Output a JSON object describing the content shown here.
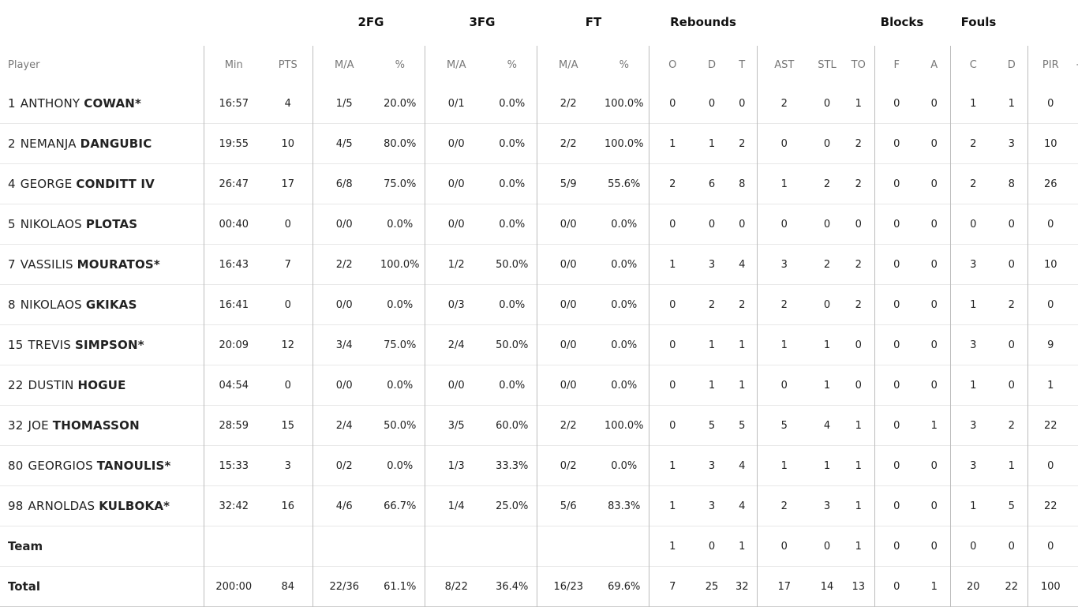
{
  "groups": {
    "fg2": "2FG",
    "fg3": "3FG",
    "ft": "FT",
    "reb": "Rebounds",
    "blk": "Blocks",
    "fouls": "Fouls"
  },
  "columns": [
    "Player",
    "Min",
    "PTS",
    "M/A",
    "%",
    "M/A",
    "%",
    "M/A",
    "%",
    "O",
    "D",
    "T",
    "AST",
    "STL",
    "TO",
    "F",
    "A",
    "C",
    "D",
    "PIR",
    "+/-"
  ],
  "players": [
    {
      "num": "1",
      "first": "ANTHONY",
      "last": "COWAN*",
      "stats": [
        "16:57",
        "4",
        "1/5",
        "20.0%",
        "0/1",
        "0.0%",
        "2/2",
        "100.0%",
        "0",
        "0",
        "0",
        "2",
        "0",
        "1",
        "0",
        "0",
        "1",
        "1",
        "0",
        ""
      ]
    },
    {
      "num": "2",
      "first": "NEMANJA",
      "last": "DANGUBIC",
      "stats": [
        "19:55",
        "10",
        "4/5",
        "80.0%",
        "0/0",
        "0.0%",
        "2/2",
        "100.0%",
        "1",
        "1",
        "2",
        "0",
        "0",
        "2",
        "0",
        "0",
        "2",
        "3",
        "10",
        ""
      ]
    },
    {
      "num": "4",
      "first": "GEORGE",
      "last": "CONDITT IV",
      "stats": [
        "26:47",
        "17",
        "6/8",
        "75.0%",
        "0/0",
        "0.0%",
        "5/9",
        "55.6%",
        "2",
        "6",
        "8",
        "1",
        "2",
        "2",
        "0",
        "0",
        "2",
        "8",
        "26",
        ""
      ]
    },
    {
      "num": "5",
      "first": "NIKOLAOS",
      "last": "PLOTAS",
      "stats": [
        "00:40",
        "0",
        "0/0",
        "0.0%",
        "0/0",
        "0.0%",
        "0/0",
        "0.0%",
        "0",
        "0",
        "0",
        "0",
        "0",
        "0",
        "0",
        "0",
        "0",
        "0",
        "0",
        ""
      ]
    },
    {
      "num": "7",
      "first": "VASSILIS",
      "last": "MOURATOS*",
      "stats": [
        "16:43",
        "7",
        "2/2",
        "100.0%",
        "1/2",
        "50.0%",
        "0/0",
        "0.0%",
        "1",
        "3",
        "4",
        "3",
        "2",
        "2",
        "0",
        "0",
        "3",
        "0",
        "10",
        ""
      ]
    },
    {
      "num": "8",
      "first": "NIKOLAOS",
      "last": "GKIKAS",
      "stats": [
        "16:41",
        "0",
        "0/0",
        "0.0%",
        "0/3",
        "0.0%",
        "0/0",
        "0.0%",
        "0",
        "2",
        "2",
        "2",
        "0",
        "2",
        "0",
        "0",
        "1",
        "2",
        "0",
        ""
      ]
    },
    {
      "num": "15",
      "first": "TREVIS",
      "last": "SIMPSON*",
      "stats": [
        "20:09",
        "12",
        "3/4",
        "75.0%",
        "2/4",
        "50.0%",
        "0/0",
        "0.0%",
        "0",
        "1",
        "1",
        "1",
        "1",
        "0",
        "0",
        "0",
        "3",
        "0",
        "9",
        ""
      ]
    },
    {
      "num": "22",
      "first": "DUSTIN",
      "last": "HOGUE",
      "stats": [
        "04:54",
        "0",
        "0/0",
        "0.0%",
        "0/0",
        "0.0%",
        "0/0",
        "0.0%",
        "0",
        "1",
        "1",
        "0",
        "1",
        "0",
        "0",
        "0",
        "1",
        "0",
        "1",
        ""
      ]
    },
    {
      "num": "32",
      "first": "JOE",
      "last": "THOMASSON",
      "stats": [
        "28:59",
        "15",
        "2/4",
        "50.0%",
        "3/5",
        "60.0%",
        "2/2",
        "100.0%",
        "0",
        "5",
        "5",
        "5",
        "4",
        "1",
        "0",
        "1",
        "3",
        "2",
        "22",
        ""
      ]
    },
    {
      "num": "80",
      "first": "GEORGIOS",
      "last": "TANOULIS*",
      "stats": [
        "15:33",
        "3",
        "0/2",
        "0.0%",
        "1/3",
        "33.3%",
        "0/2",
        "0.0%",
        "1",
        "3",
        "4",
        "1",
        "1",
        "1",
        "0",
        "0",
        "3",
        "1",
        "0",
        ""
      ]
    },
    {
      "num": "98",
      "first": "ARNOLDAS",
      "last": "KULBOKA*",
      "stats": [
        "32:42",
        "16",
        "4/6",
        "66.7%",
        "1/4",
        "25.0%",
        "5/6",
        "83.3%",
        "1",
        "3",
        "4",
        "2",
        "3",
        "1",
        "0",
        "0",
        "1",
        "5",
        "22",
        ""
      ]
    }
  ],
  "team": {
    "label": "Team",
    "stats": [
      "",
      "",
      "",
      "",
      "",
      "",
      "",
      "",
      "1",
      "0",
      "1",
      "0",
      "0",
      "1",
      "0",
      "0",
      "0",
      "0",
      "0",
      ""
    ]
  },
  "total": {
    "label": "Total",
    "stats": [
      "200:00",
      "84",
      "22/36",
      "61.1%",
      "8/22",
      "36.4%",
      "16/23",
      "69.6%",
      "7",
      "25",
      "32",
      "17",
      "14",
      "13",
      "0",
      "1",
      "20",
      "22",
      "100",
      ""
    ]
  }
}
